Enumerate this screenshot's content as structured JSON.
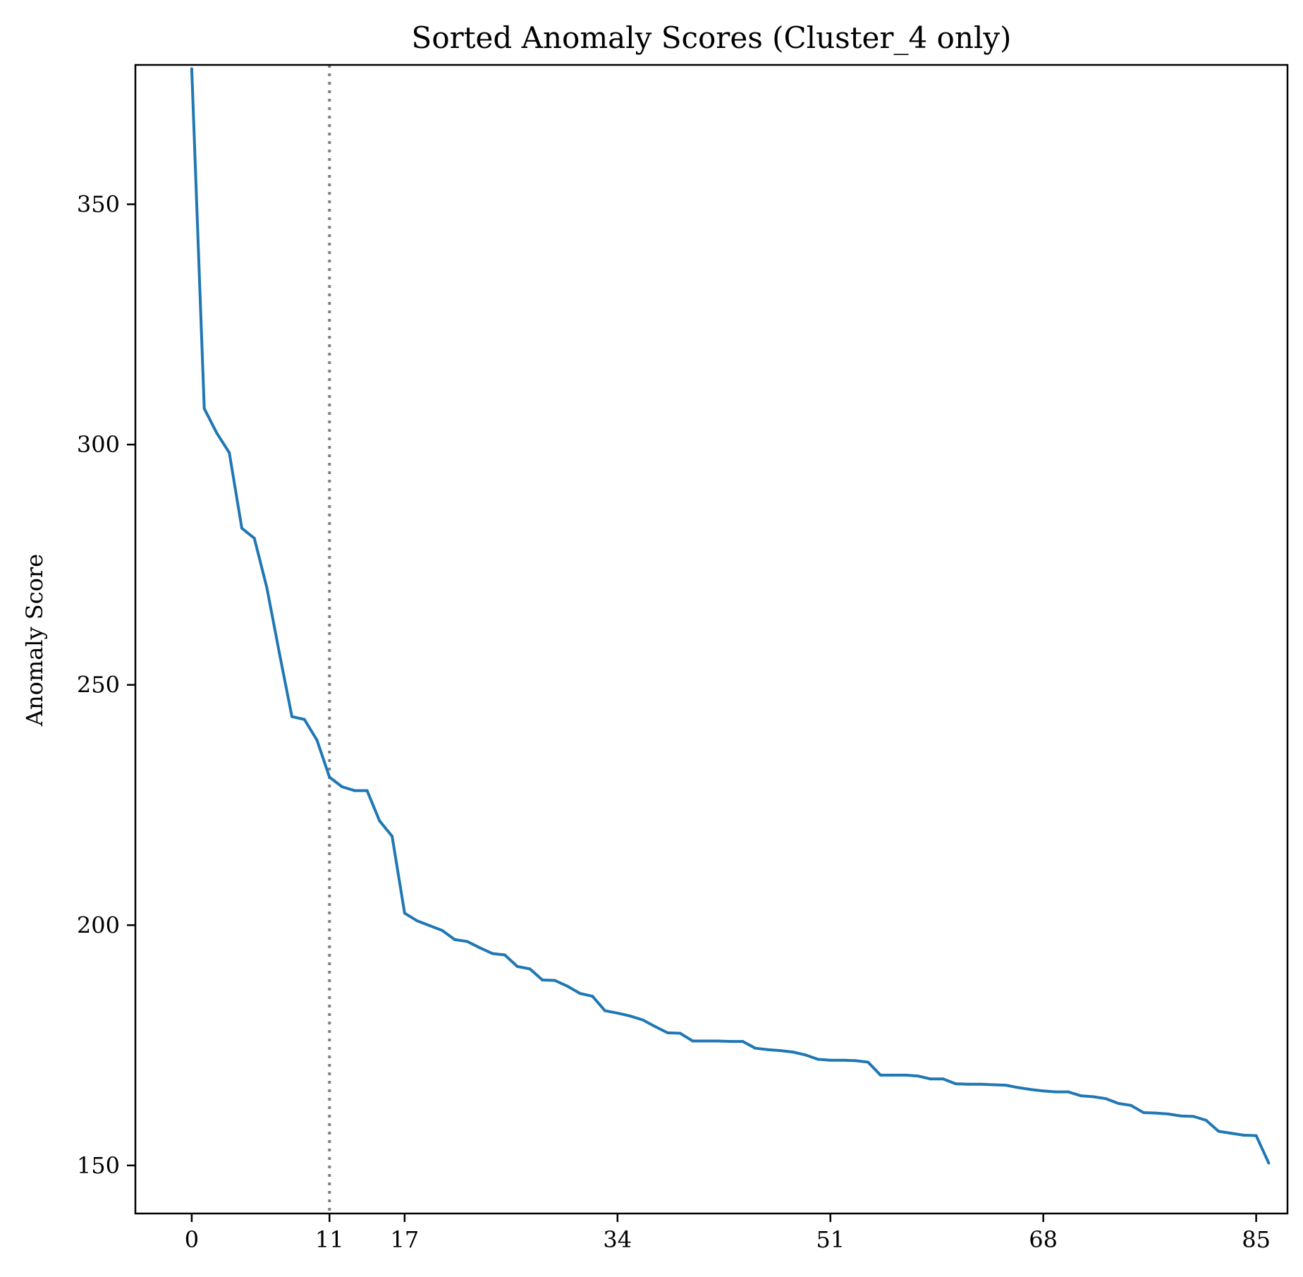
{
  "chart_data": {
    "type": "line",
    "title": "Sorted Anomaly Scores (Cluster_4 only)",
    "xlabel": "",
    "ylabel": "Anomaly Score",
    "xlim": [
      -4.5,
      87.5
    ],
    "ylim": [
      140,
      379
    ],
    "x_ticks": [
      0,
      11,
      17,
      34,
      51,
      68,
      85
    ],
    "y_ticks": [
      150,
      200,
      250,
      300,
      350
    ],
    "grid": false,
    "legend": "none",
    "colors": {
      "line": "#1f77b4",
      "threshold": "#808080",
      "axes": "#000000"
    },
    "threshold_line": {
      "x": 11,
      "style": "dotted"
    },
    "series": [
      {
        "x": [
          0,
          1,
          2,
          3,
          4,
          5,
          6,
          7,
          8,
          9,
          10,
          11,
          12,
          13,
          14,
          15,
          16,
          17,
          18,
          19,
          20,
          21,
          22,
          23,
          24,
          25,
          26,
          27,
          28,
          29,
          30,
          31,
          32,
          33,
          34,
          35,
          36,
          37,
          38,
          39,
          40,
          41,
          42,
          43,
          44,
          45,
          46,
          47,
          48,
          49,
          50,
          51,
          52,
          53,
          54,
          55,
          56,
          57,
          58,
          59,
          60,
          61,
          62,
          63,
          64,
          65,
          66,
          67,
          68,
          69,
          70,
          71,
          72,
          73,
          74,
          75,
          76,
          77,
          78,
          79,
          80,
          81,
          82,
          83,
          84,
          85,
          86
        ],
        "values": [
          378.2,
          307.5,
          302.4,
          298.3,
          282.6,
          280.5,
          270.2,
          256.6,
          243.4,
          242.8,
          238.5,
          230.8,
          228.8,
          228.0,
          228.0,
          221.7,
          218.5,
          202.5,
          200.9,
          199.9,
          198.9,
          197.0,
          196.6,
          195.3,
          194.1,
          193.8,
          191.4,
          190.9,
          188.6,
          188.5,
          187.3,
          185.8,
          185.2,
          182.2,
          181.7,
          181.1,
          180.3,
          178.9,
          177.6,
          177.5,
          175.9,
          175.9,
          175.9,
          175.8,
          175.8,
          174.4,
          174.1,
          173.9,
          173.6,
          173.0,
          172.1,
          171.9,
          171.9,
          171.8,
          171.5,
          168.8,
          168.8,
          168.8,
          168.6,
          168.0,
          168.0,
          167.0,
          166.9,
          166.9,
          166.8,
          166.7,
          166.2,
          165.8,
          165.5,
          165.3,
          165.3,
          164.5,
          164.3,
          163.9,
          162.9,
          162.5,
          161.0,
          160.9,
          160.7,
          160.3,
          160.2,
          159.4,
          157.1,
          156.7,
          156.3,
          156.2,
          150.5
        ]
      }
    ]
  }
}
